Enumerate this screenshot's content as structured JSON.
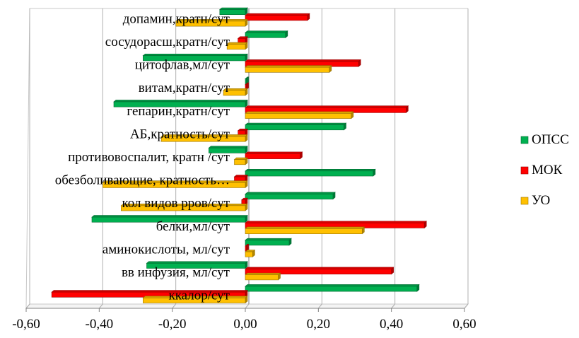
{
  "chart_data": {
    "type": "bar",
    "orientation": "horizontal",
    "categories": [
      "ккалор/сут",
      "вв инфузия, мл/сут",
      "аминокислоты, мл/сут",
      "белки,мл/сут",
      "кол видов рров/сут",
      "обезболивающие, кратность…",
      "противовоспалит, кратн  /сут",
      "АБ,кратность/сут",
      "гепарин,кратн/сут",
      "витам,кратн/сут",
      "цитофлав,мл/сут",
      "сосудорасш,кратн/сут",
      "допамин,кратн/сут"
    ],
    "series": [
      {
        "name": "ОПСС",
        "color": "#00b050",
        "values": [
          0.47,
          -0.27,
          0.12,
          -0.42,
          0.24,
          0.35,
          -0.1,
          0.27,
          -0.36,
          0.0,
          -0.28,
          0.11,
          -0.07
        ]
      },
      {
        "name": "МОК",
        "color": "#ff0000",
        "values": [
          -0.53,
          0.4,
          0.0,
          0.49,
          -0.01,
          -0.03,
          0.15,
          -0.02,
          0.44,
          0.0,
          0.31,
          -0.02,
          0.17
        ]
      },
      {
        "name": "УО",
        "color": "#ffc000",
        "values": [
          -0.28,
          0.09,
          0.02,
          0.32,
          -0.34,
          -0.39,
          -0.03,
          -0.23,
          0.29,
          -0.06,
          0.23,
          -0.05,
          -0.19
        ]
      }
    ],
    "xlim": [
      -0.6,
      0.6
    ],
    "xticks": [
      -0.6,
      -0.4,
      -0.2,
      0.0,
      0.2,
      0.4,
      0.6
    ],
    "xtick_labels": [
      "-0,60",
      "-0,40",
      "-0,20",
      "0,00",
      "0,20",
      "0,40",
      "0,60"
    ],
    "grid": true,
    "legend_position": "right"
  }
}
